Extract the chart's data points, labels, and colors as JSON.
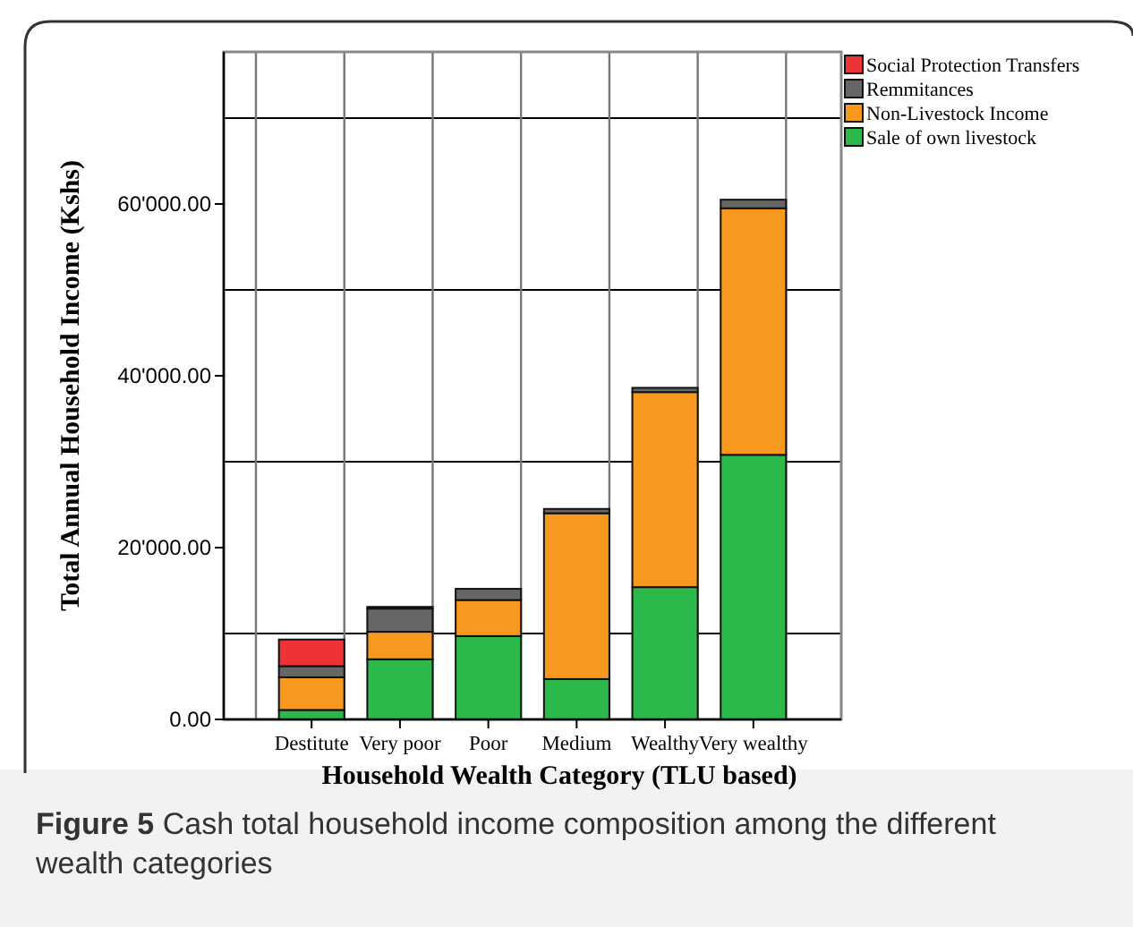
{
  "chart_data": {
    "type": "bar",
    "stacked": true,
    "xlabel": "Household Wealth Category (TLU based)",
    "ylabel": "Total Annual Household Income (Kshs)",
    "categories": [
      "Destitute",
      "Very poor",
      "Poor",
      "Medium",
      "Wealthy",
      "Very wealthy"
    ],
    "series": [
      {
        "name": "Sale of own livestock",
        "color": "#2db84b",
        "values": [
          1100,
          7000,
          9700,
          4700,
          15400,
          30800
        ]
      },
      {
        "name": "Non-Livestock Income",
        "color": "#f7981f",
        "values": [
          3800,
          3200,
          4200,
          19300,
          22700,
          28700
        ]
      },
      {
        "name": "Remmitances",
        "color": "#666666",
        "values": [
          1300,
          2700,
          1300,
          500,
          500,
          1000
        ]
      },
      {
        "name": "Social Protection Transfers",
        "color": "#ee3338",
        "values": [
          3100,
          200,
          null,
          null,
          null,
          null
        ]
      }
    ],
    "ylim": [
      0,
      77700
    ],
    "yticks": [
      {
        "value": 0,
        "label": "0.00"
      },
      {
        "value": 10000,
        "label": null
      },
      {
        "value": 20000,
        "label": "20'000.00"
      },
      {
        "value": 30000,
        "label": null
      },
      {
        "value": 40000,
        "label": "40'000.00"
      },
      {
        "value": 50000,
        "label": null
      },
      {
        "value": 60000,
        "label": "60'000.00"
      },
      {
        "value": 70000,
        "label": null
      }
    ],
    "grid": true,
    "legend": "top right",
    "annotations": [
      "Figure 5 Cash total household income composition among the different wealth categories"
    ]
  }
}
